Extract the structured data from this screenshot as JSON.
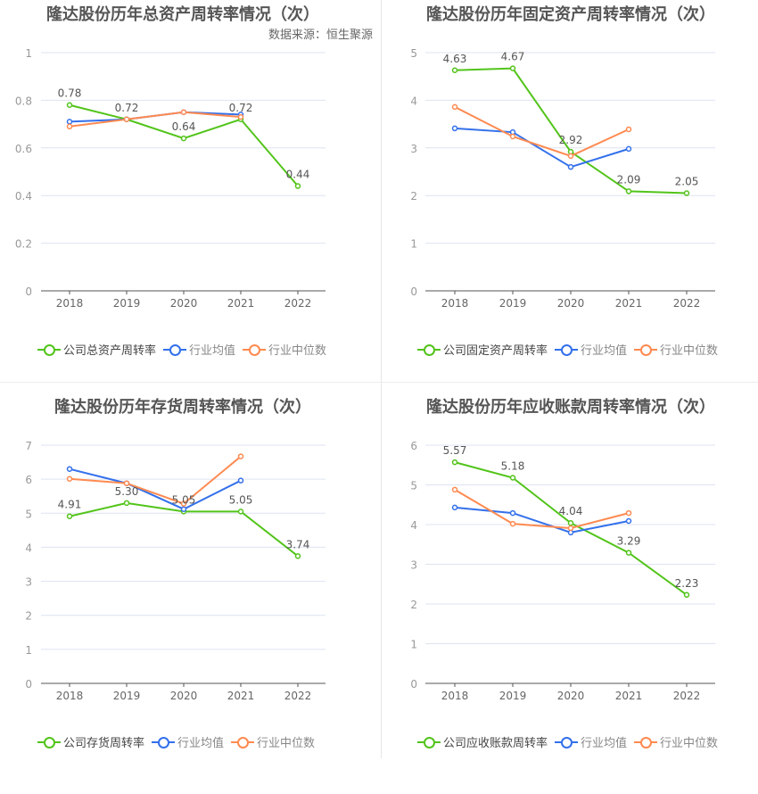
{
  "source_label": "数据来源：恒生聚源",
  "colors": {
    "company": "#52c41a",
    "mean": "#3370eb",
    "median": "#ff8a50",
    "grid": "#dde3f0",
    "axis": "#555"
  },
  "chart_data": [
    {
      "type": "line",
      "title": "隆达股份历年总资产周转率情况（次）",
      "categories": [
        "2018",
        "2019",
        "2020",
        "2021",
        "2022"
      ],
      "ylim": [
        0,
        1
      ],
      "yticks": [
        "0",
        "0.2",
        "0.4",
        "0.6",
        "0.8",
        "1"
      ],
      "grid": true,
      "legend": "bottom",
      "series": [
        {
          "name": "公司总资产周转率",
          "color_key": "company",
          "values": [
            0.78,
            0.72,
            0.64,
            0.72,
            0.44
          ],
          "labels": [
            "0.78",
            "0.72",
            "0.64",
            "0.72",
            "0.44"
          ]
        },
        {
          "name": "行业均值",
          "color_key": "mean",
          "values": [
            0.71,
            0.72,
            0.75,
            0.74,
            null
          ]
        },
        {
          "name": "行业中位数",
          "color_key": "median",
          "values": [
            0.69,
            0.72,
            0.75,
            0.73,
            null
          ]
        }
      ]
    },
    {
      "type": "line",
      "title": "隆达股份历年存货周转率情况（次）",
      "categories": [
        "2018",
        "2019",
        "2020",
        "2021",
        "2022"
      ],
      "ylim": [
        0,
        7
      ],
      "yticks": [
        "0",
        "1",
        "2",
        "3",
        "4",
        "5",
        "6",
        "7"
      ],
      "grid": true,
      "legend": "bottom",
      "series": [
        {
          "name": "公司存货周转率",
          "color_key": "company",
          "values": [
            4.91,
            5.3,
            5.05,
            5.05,
            3.74
          ],
          "labels": [
            "4.91",
            "5.30",
            "5.05",
            "5.05",
            "3.74"
          ]
        },
        {
          "name": "行业均值",
          "color_key": "mean",
          "values": [
            6.3,
            5.88,
            5.12,
            5.96,
            null
          ]
        },
        {
          "name": "行业中位数",
          "color_key": "median",
          "values": [
            6.01,
            5.88,
            5.28,
            6.67,
            null
          ]
        }
      ]
    },
    {
      "type": "line",
      "title": "隆达股份历年固定资产周转率情况（次）",
      "categories": [
        "2018",
        "2019",
        "2020",
        "2021",
        "2022"
      ],
      "ylim": [
        0,
        5
      ],
      "yticks": [
        "0",
        "1",
        "2",
        "3",
        "4",
        "5"
      ],
      "grid": true,
      "legend": "bottom",
      "series": [
        {
          "name": "公司固定资产周转率",
          "color_key": "company",
          "values": [
            4.63,
            4.67,
            2.92,
            2.09,
            2.05
          ],
          "labels": [
            "4.63",
            "4.67",
            "2.92",
            "2.09",
            "2.05"
          ]
        },
        {
          "name": "行业均值",
          "color_key": "mean",
          "values": [
            3.41,
            3.33,
            2.6,
            2.98,
            null
          ]
        },
        {
          "name": "行业中位数",
          "color_key": "median",
          "values": [
            3.86,
            3.24,
            2.83,
            3.39,
            null
          ]
        }
      ]
    },
    {
      "type": "line",
      "title": "隆达股份历年应收账款周转率情况（次）",
      "categories": [
        "2018",
        "2019",
        "2020",
        "2021",
        "2022"
      ],
      "ylim": [
        0,
        6
      ],
      "yticks": [
        "0",
        "1",
        "2",
        "3",
        "4",
        "5",
        "6"
      ],
      "grid": true,
      "legend": "bottom",
      "series": [
        {
          "name": "公司应收账款周转率",
          "color_key": "company",
          "values": [
            5.57,
            5.18,
            4.04,
            3.29,
            2.23
          ],
          "labels": [
            "5.57",
            "5.18",
            "4.04",
            "3.29",
            "2.23"
          ]
        },
        {
          "name": "行业均值",
          "color_key": "mean",
          "values": [
            4.43,
            4.29,
            3.8,
            4.09,
            null
          ]
        },
        {
          "name": "行业中位数",
          "color_key": "median",
          "values": [
            4.88,
            4.02,
            3.91,
            4.29,
            null
          ]
        }
      ]
    }
  ]
}
